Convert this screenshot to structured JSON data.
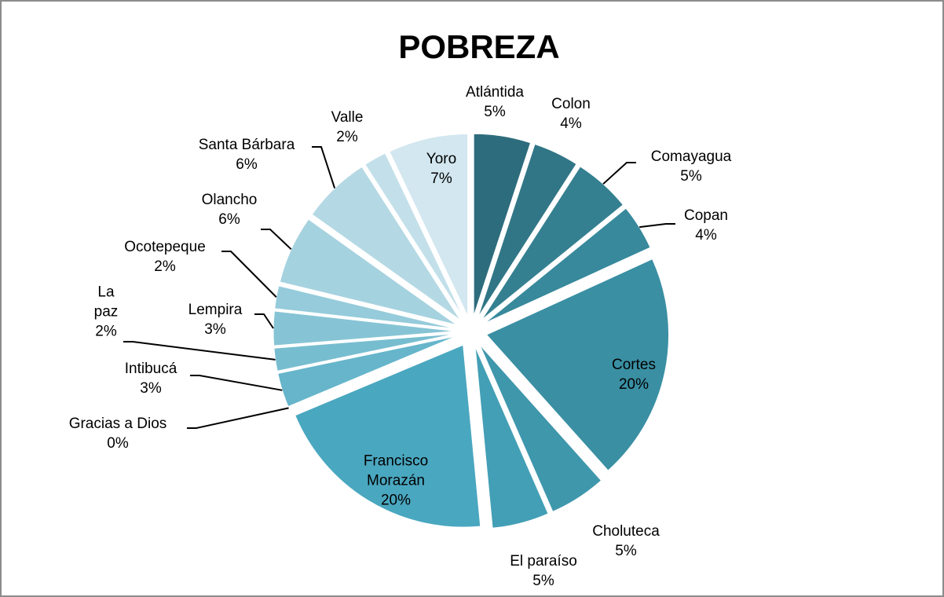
{
  "chart_data": {
    "type": "pie",
    "title": "POBREZA",
    "categories": [
      "Atlántida",
      "Colon",
      "Comayagua",
      "Copan",
      "Cortes",
      "Choluteca",
      "El paraíso",
      "Francisco Morazán",
      "Gracias a Dios",
      "Intibucá",
      "La paz",
      "Lempira",
      "Ocotepeque",
      "Olancho",
      "Santa Bárbara",
      "Valle",
      "Yoro"
    ],
    "values": [
      5,
      4,
      5,
      4,
      20,
      5,
      5,
      20,
      0,
      3,
      2,
      3,
      2,
      6,
      6,
      2,
      7
    ],
    "value_labels": [
      "5%",
      "4%",
      "5%",
      "4%",
      "20%",
      "5%",
      "5%",
      "20%",
      "0%",
      "3%",
      "2%",
      "3%",
      "2%",
      "6%",
      "6%",
      "2%",
      "7%"
    ],
    "colors": [
      "#2d6c7c",
      "#317687",
      "#348091",
      "#37899b",
      "#3a8fa3",
      "#3f97ac",
      "#439fb5",
      "#4aa7c0",
      "#58afc7",
      "#66b5cb",
      "#77bdd0",
      "#86c4d5",
      "#95cbda",
      "#a5d2df",
      "#b4d9e4",
      "#c3e0ea",
      "#d2e7ef"
    ]
  }
}
